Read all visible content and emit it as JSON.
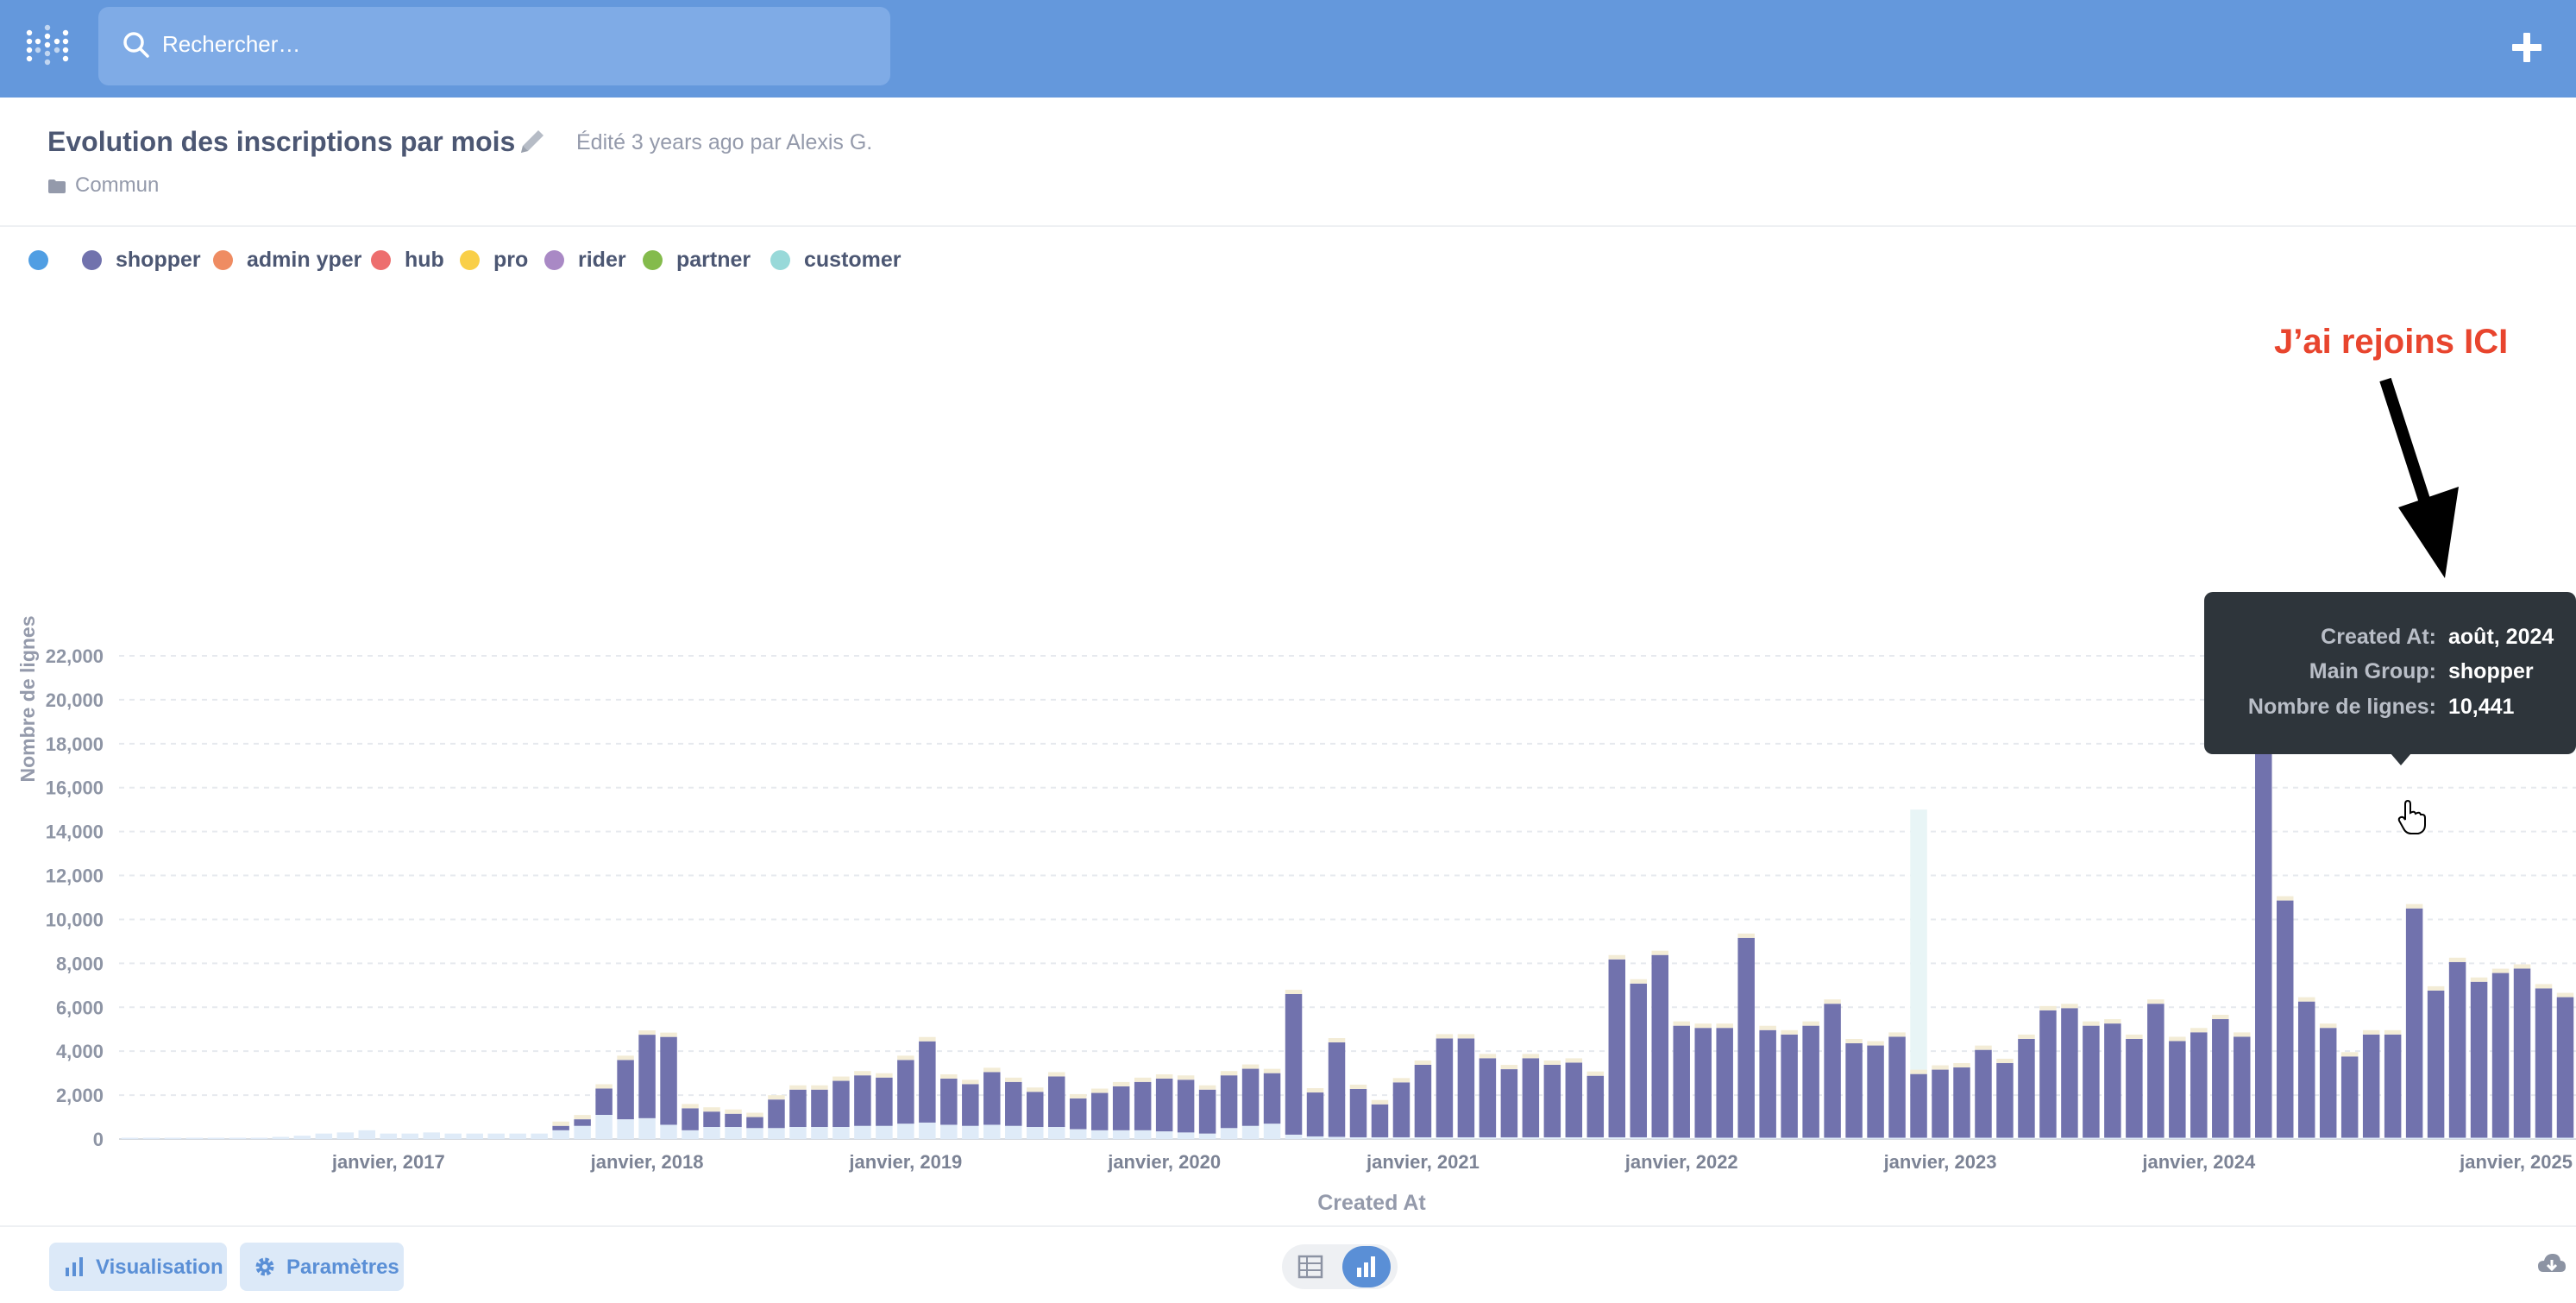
{
  "app": {
    "search_placeholder": "Rechercher…"
  },
  "question": {
    "title": "Evolution des inscriptions par mois",
    "edited": "Édité 3 years ago par Alexis G.",
    "collection": "Commun"
  },
  "legend": [
    {
      "name": "",
      "color": "#509ee3"
    },
    {
      "name": "shopper",
      "color": "#7172ad"
    },
    {
      "name": "admin yper",
      "color": "#ef8c62"
    },
    {
      "name": "hub",
      "color": "#ed6e6e"
    },
    {
      "name": "pro",
      "color": "#f9cf48"
    },
    {
      "name": "rider",
      "color": "#a989c5"
    },
    {
      "name": "partner",
      "color": "#84bb4c"
    },
    {
      "name": "customer",
      "color": "#98d9d9"
    }
  ],
  "tooltip": {
    "rows": [
      {
        "label": "Created At:",
        "value": "août, 2024"
      },
      {
        "label": "Main Group:",
        "value": "shopper"
      },
      {
        "label": "Nombre de lignes:",
        "value": "10,441"
      }
    ]
  },
  "annotation": "J’ai rejoins ICI",
  "footer": {
    "visualisation": "Visualisation",
    "parametres": "Paramètres"
  },
  "chart_data": {
    "type": "bar",
    "stacked": true,
    "xlabel": "Created At",
    "ylabel": "Nombre de lignes",
    "ylim": [
      0,
      23500
    ],
    "y_ticks": [
      0,
      2000,
      4000,
      6000,
      8000,
      10000,
      12000,
      14000,
      16000,
      18000,
      20000,
      22000
    ],
    "y_tick_labels": [
      "0",
      "2,000",
      "4,000",
      "6,000",
      "8,000",
      "10,000",
      "12,000",
      "14,000",
      "16,000",
      "18,000",
      "20,000",
      "22,000"
    ],
    "x_tick_labels": [
      "janvier, 2017",
      "janvier, 2018",
      "janvier, 2019",
      "janvier, 2020",
      "janvier, 2021",
      "janvier, 2022",
      "janvier, 2023",
      "janvier, 2024",
      "janvier, 2025"
    ],
    "x_tick_index": [
      12,
      24,
      36,
      48,
      60,
      72,
      84,
      96,
      108
    ],
    "x_start": "2016-01",
    "grid": true,
    "legend_position": "top-left",
    "series": [
      {
        "name": "shopper",
        "color": "#7172ad",
        "values": [
          0,
          0,
          0,
          0,
          0,
          0,
          0,
          0,
          0,
          0,
          0,
          0,
          0,
          0,
          0,
          0,
          0,
          0,
          0,
          0,
          200,
          300,
          1200,
          2700,
          3800,
          4000,
          1000,
          700,
          600,
          500,
          1300,
          1700,
          1700,
          2100,
          2300,
          2200,
          2900,
          3700,
          2100,
          1900,
          2400,
          2000,
          1600,
          2300,
          1400,
          1700,
          2000,
          2200,
          2400,
          2400,
          2000,
          2400,
          2600,
          2300,
          6400,
          2000,
          4300,
          2200,
          1500,
          2500,
          3300,
          4500,
          4500,
          3600,
          3100,
          3600,
          3300,
          3400,
          2800,
          8100,
          7000,
          8300,
          5100,
          5000,
          5000,
          9100,
          4900,
          4700,
          5100,
          6100,
          4300,
          4200,
          4600,
          2900,
          3100,
          3200,
          4000,
          3400,
          4500,
          5800,
          5900,
          5100,
          5200,
          4500,
          6100,
          4400,
          4800,
          5400,
          4600,
          23300,
          10800,
          6200,
          5000,
          3700,
          4700,
          4700,
          10441,
          6700,
          8000,
          7100,
          7500,
          7700,
          6800,
          6400
        ]
      },
      {
        "name": "",
        "color": "#dfebf8",
        "values": [
          60,
          60,
          60,
          60,
          60,
          60,
          60,
          100,
          150,
          250,
          300,
          400,
          250,
          250,
          300,
          250,
          250,
          250,
          250,
          250,
          400,
          600,
          1100,
          900,
          950,
          650,
          400,
          550,
          550,
          500,
          500,
          550,
          550,
          550,
          600,
          600,
          700,
          750,
          650,
          600,
          650,
          600,
          550,
          550,
          450,
          400,
          400,
          400,
          350,
          300,
          250,
          500,
          600,
          700,
          200,
          120,
          100,
          80,
          80,
          80,
          80,
          80,
          80,
          80,
          80,
          80,
          80,
          80,
          80,
          80,
          80,
          80,
          60,
          60,
          60,
          60,
          60,
          60,
          60,
          60,
          60,
          60,
          60,
          60,
          60,
          60,
          60,
          60,
          60,
          60,
          60,
          60,
          60,
          60,
          60,
          60,
          60,
          60,
          60,
          60,
          60,
          60,
          60,
          60,
          60,
          60,
          60,
          60,
          60,
          60,
          60,
          60,
          60,
          60
        ]
      }
    ],
    "customer_highlight": {
      "index": 83,
      "value": 15000
    }
  }
}
